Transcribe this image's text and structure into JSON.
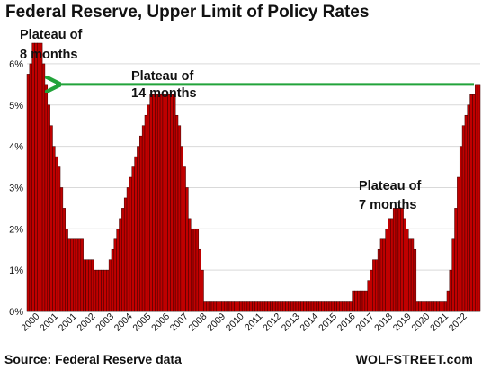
{
  "chart_data": {
    "type": "bar",
    "title": "Federal Reserve, Upper Limit of Policy Rates",
    "source": "Source: Federal Reserve data",
    "brand": "WOLFSTREET.com",
    "ylim": [
      0,
      6.5
    ],
    "y_ticks": [
      "0%",
      "1%",
      "2%",
      "3%",
      "4%",
      "5%",
      "6%"
    ],
    "x_tick_labels": [
      "2000",
      "2001",
      "2001",
      "2002",
      "2003",
      "2004",
      "2005",
      "2006",
      "2007",
      "2008",
      "2009",
      "2010",
      "2011",
      "2012",
      "2013",
      "2014",
      "2015",
      "2016",
      "2017",
      "2018",
      "2019",
      "2020",
      "2021",
      "2022"
    ],
    "bar_color": "#c00000",
    "annotations": [
      {
        "line1": "Plateau of",
        "line2": "8 months"
      },
      {
        "line1": "Plateau of",
        "line2": "14 months"
      },
      {
        "line1": "Plateau of",
        "line2": "7 months"
      }
    ],
    "arrow_color": "#22a33a",
    "arrow_level": 5.5,
    "values": [
      5.75,
      6.0,
      6.5,
      6.5,
      6.5,
      6.5,
      6.0,
      5.5,
      5.0,
      4.5,
      4.0,
      3.75,
      3.5,
      3.0,
      2.5,
      2.0,
      1.75,
      1.75,
      1.75,
      1.75,
      1.75,
      1.75,
      1.25,
      1.25,
      1.25,
      1.25,
      1.0,
      1.0,
      1.0,
      1.0,
      1.0,
      1.0,
      1.25,
      1.5,
      1.75,
      2.0,
      2.25,
      2.5,
      2.75,
      3.0,
      3.25,
      3.5,
      3.75,
      4.0,
      4.25,
      4.5,
      4.75,
      5.0,
      5.25,
      5.25,
      5.25,
      5.25,
      5.25,
      5.25,
      5.25,
      5.25,
      5.25,
      5.25,
      4.75,
      4.5,
      4.0,
      3.5,
      3.0,
      2.25,
      2.0,
      2.0,
      2.0,
      1.5,
      1.0,
      0.25,
      0.25,
      0.25,
      0.25,
      0.25,
      0.25,
      0.25,
      0.25,
      0.25,
      0.25,
      0.25,
      0.25,
      0.25,
      0.25,
      0.25,
      0.25,
      0.25,
      0.25,
      0.25,
      0.25,
      0.25,
      0.25,
      0.25,
      0.25,
      0.25,
      0.25,
      0.25,
      0.25,
      0.25,
      0.25,
      0.25,
      0.25,
      0.25,
      0.25,
      0.25,
      0.25,
      0.25,
      0.25,
      0.25,
      0.25,
      0.25,
      0.25,
      0.25,
      0.25,
      0.25,
      0.25,
      0.25,
      0.25,
      0.25,
      0.25,
      0.25,
      0.25,
      0.25,
      0.25,
      0.25,
      0.25,
      0.25,
      0.25,
      0.5,
      0.5,
      0.5,
      0.5,
      0.5,
      0.5,
      0.75,
      1.0,
      1.25,
      1.25,
      1.5,
      1.75,
      1.75,
      2.0,
      2.25,
      2.25,
      2.5,
      2.5,
      2.5,
      2.5,
      2.25,
      2.0,
      1.75,
      1.75,
      1.5,
      0.25,
      0.25,
      0.25,
      0.25,
      0.25,
      0.25,
      0.25,
      0.25,
      0.25,
      0.25,
      0.25,
      0.25,
      0.5,
      1.0,
      1.75,
      2.5,
      3.25,
      4.0,
      4.5,
      4.75,
      5.0,
      5.25,
      5.25,
      5.5,
      5.5
    ]
  }
}
